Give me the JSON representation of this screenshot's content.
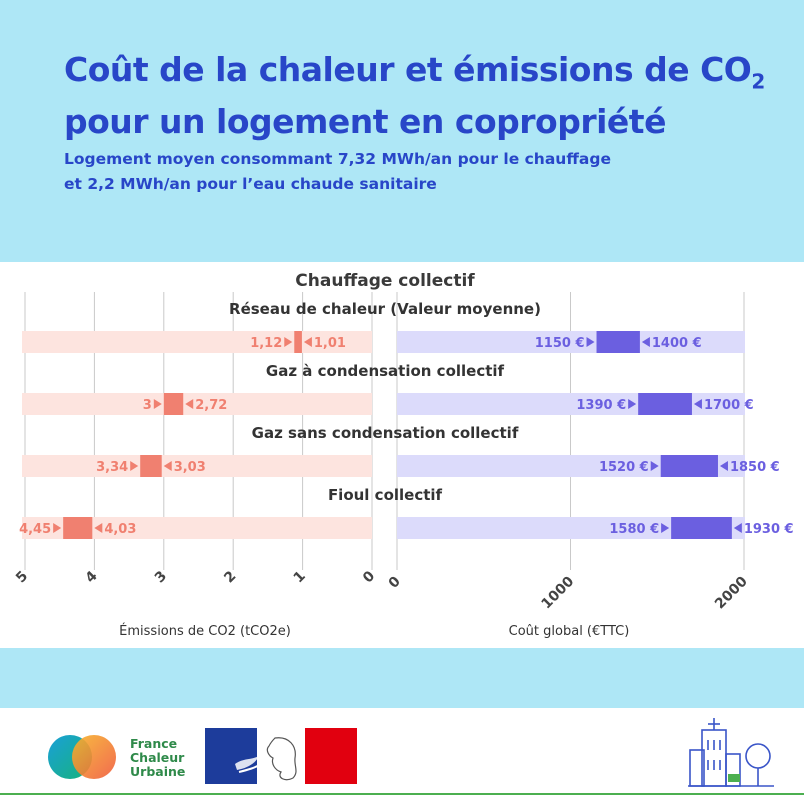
{
  "header": {
    "title_line1": "Coût de la chaleur et émissions de CO",
    "title_sub": "2",
    "title_line2": "pour un logement en copropriété",
    "subtitle_line1": "Logement moyen consommant 7,32 MWh/an pour le chauffage",
    "subtitle_line2": "et 2,2 MWh/an pour l’eau chaude sanitaire"
  },
  "colors": {
    "accent_blue": "#2846c8",
    "light_band": "#aee7f6",
    "emission_bar": "#f08070",
    "emission_bg": "#fde4df",
    "cost_bar": "#6b5fe0",
    "cost_bg": "#dcdbfb",
    "brand_green": "#2f8a4a"
  },
  "chart_data": {
    "type": "bar",
    "title": "Chauffage collectif",
    "categories": [
      "Réseau de chaleur (Valeur moyenne)",
      "Gaz à condensation collectif",
      "Gaz sans condensation collectif",
      "Fioul collectif"
    ],
    "series": [
      {
        "name": "Émissions de CO2 (tCO2e)",
        "low": [
          1.01,
          2.72,
          3.03,
          4.03
        ],
        "high": [
          1.12,
          3,
          3.34,
          4.45
        ],
        "low_labels": [
          "1,01",
          "2,72",
          "3,03",
          "4,03"
        ],
        "high_labels": [
          "1,12",
          "3",
          "3,34",
          "4,45"
        ]
      },
      {
        "name": "Coût global (€TTC)",
        "low": [
          1150,
          1390,
          1520,
          1580
        ],
        "high": [
          1400,
          1700,
          1850,
          1930
        ],
        "low_labels": [
          "1150 €",
          "1390 €",
          "1520 €",
          "1580 €"
        ],
        "high_labels": [
          "1400 €",
          "1700 €",
          "1850 €",
          "1930 €"
        ]
      }
    ],
    "left_axis": {
      "label": "Émissions de CO2 (tCO2e)",
      "range": [
        0,
        5
      ],
      "reversed": true,
      "ticks": [
        5,
        4,
        3,
        2,
        1,
        0
      ]
    },
    "right_axis": {
      "label": "Coût global (€TTC)",
      "range": [
        0,
        2000
      ],
      "ticks": [
        0,
        1000,
        2000
      ]
    },
    "grid": true
  },
  "footer": {
    "brand_line1": "France",
    "brand_line2": "Chaleur",
    "brand_line3": "Urbaine",
    "logo_fcu_icon": "overlapping-circles-logo",
    "logo_rf_icon": "marianne-logo",
    "illustration_icon": "building-tree-icon"
  }
}
